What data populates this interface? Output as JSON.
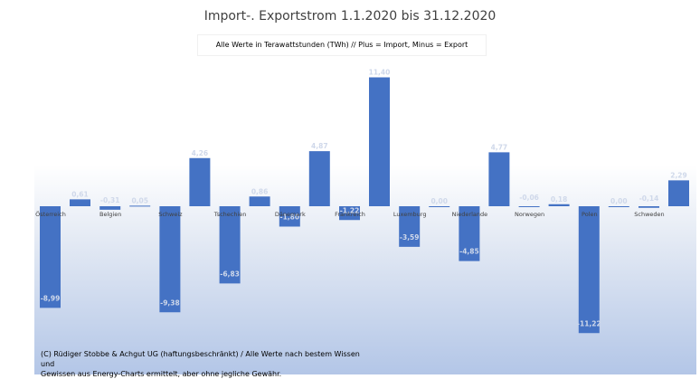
{
  "chart_data": {
    "type": "bar",
    "title": "Import-. Exportstrom 1.1.2020 bis 31.12.2020",
    "subtitle": "Alle Werte in Terawattstunden (TWh) // Plus = Import, Minus = Export",
    "footnote_line1": "(C) Rüdiger Stobbe & Achgut UG (haftungsbeschränkt) / Alle Werte nach bestem Wissen und",
    "footnote_line2": "Gewissen aus Energy-Charts ermittelt, aber ohne jegliche Gewähr.",
    "bar_color": "#4472c4",
    "grid": false,
    "ylim": [
      -11.22,
      11.4
    ],
    "groups": [
      {
        "category": "Österreich",
        "import": 0.61,
        "export": -8.99
      },
      {
        "category": "Belgien",
        "import": 0.05,
        "export": -0.31
      },
      {
        "category": "Schweiz",
        "import": 4.26,
        "export": -9.38
      },
      {
        "category": "Tschechien",
        "import": 0.86,
        "export": -6.83
      },
      {
        "category": "Dänemark",
        "import": 4.87,
        "export": -1.8
      },
      {
        "category": "Frankreich",
        "import": 11.4,
        "export": -1.22
      },
      {
        "category": "Luxemburg",
        "import": 0.0,
        "export": -3.59
      },
      {
        "category": "Niederlande",
        "import": 4.77,
        "export": -4.85
      },
      {
        "category": "Norwegen",
        "import": 0.18,
        "export": -0.06
      },
      {
        "category": "Polen",
        "import": 0.0,
        "export": -11.22
      },
      {
        "category": "Schweden",
        "import": 2.29,
        "export": -0.14
      }
    ]
  }
}
